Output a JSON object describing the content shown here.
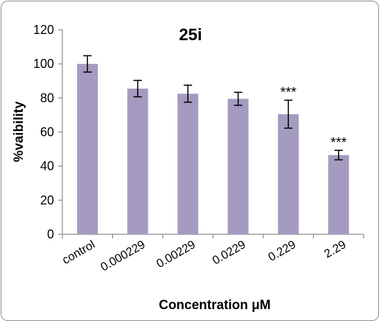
{
  "chart_data": {
    "type": "bar",
    "title": "25i",
    "xlabel": "Concentration μM",
    "ylabel": "%vaibility",
    "categories": [
      "control",
      "0.000229",
      "0.00229",
      "0.0229",
      "0.229",
      "2.29"
    ],
    "values": [
      100,
      85.5,
      82.5,
      79.5,
      70.5,
      46.5
    ],
    "errors": [
      4.8,
      4.8,
      5.0,
      3.8,
      8.2,
      2.8
    ],
    "annotations": [
      "",
      "",
      "",
      "",
      "***",
      "***"
    ],
    "ylim": [
      0,
      120
    ],
    "yticks": [
      0,
      20,
      40,
      60,
      80,
      100,
      120
    ],
    "bar_color": "#a59bc1",
    "grid": false,
    "legend": "none"
  }
}
